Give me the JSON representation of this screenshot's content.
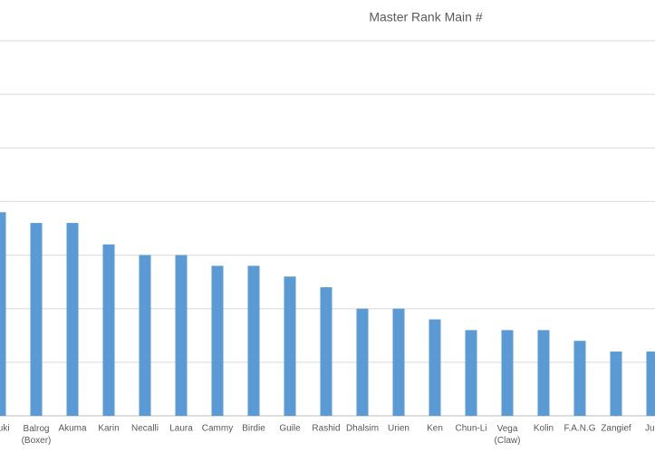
{
  "chart_data": {
    "type": "bar",
    "title": "Master Rank Main #",
    "categories": [
      "Ibuki",
      "Balrog (Boxer)",
      "Akuma",
      "Karin",
      "Necalli",
      "Laura",
      "Cammy",
      "Birdie",
      "Guile",
      "Rashid",
      "Dhalsim",
      "Urien",
      "Ken",
      "Chun-Li",
      "Vega (Claw)",
      "Kolin",
      "F.A.N.G",
      "Zangief",
      "Juri"
    ],
    "values": [
      19,
      18,
      18,
      16,
      15,
      15,
      14,
      14,
      13,
      12,
      10,
      10,
      9,
      8,
      8,
      8,
      7,
      6,
      6
    ],
    "color": "#5b9bd5",
    "ylim": [
      0,
      35
    ],
    "yticks": [
      0,
      5,
      10,
      15,
      20,
      25,
      30,
      35
    ],
    "grid": true
  }
}
